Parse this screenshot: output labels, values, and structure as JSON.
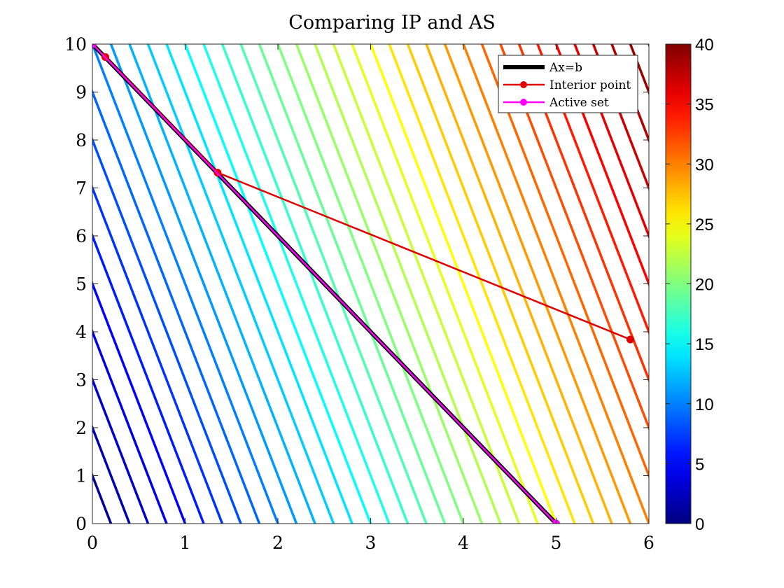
{
  "chart_data": {
    "type": "line",
    "title": "Comparing IP and AS",
    "xlabel": "",
    "ylabel": "",
    "xlim": [
      0,
      6
    ],
    "ylim": [
      0,
      10
    ],
    "x_ticks": [
      "0",
      "1",
      "2",
      "3",
      "4",
      "5",
      "6"
    ],
    "y_ticks": [
      "0",
      "1",
      "2",
      "3",
      "4",
      "5",
      "6",
      "7",
      "8",
      "9",
      "10"
    ],
    "grid": false,
    "legend_position": "top-right",
    "contour": {
      "function": "5x + y",
      "levels_start": 1,
      "levels_end": 40,
      "levels_step": 1,
      "colormap": "jet",
      "clim": [
        0,
        40
      ]
    },
    "colorbar": {
      "ticks": [
        "0",
        "5",
        "10",
        "15",
        "20",
        "25",
        "30",
        "35",
        "40"
      ],
      "range": [
        0,
        40
      ],
      "colormap": "jet"
    },
    "series": [
      {
        "name": "Ax=b",
        "color": "#000000",
        "x": [
          0,
          5
        ],
        "y": [
          10,
          0
        ]
      },
      {
        "name": "Interior point",
        "color": "#e00000",
        "x": [
          0.14,
          1.35,
          5.8
        ],
        "y": [
          9.73,
          7.32,
          3.84
        ]
      },
      {
        "name": "Active set",
        "color": "#ff00ff",
        "x": [
          0,
          5
        ],
        "y": [
          10,
          0
        ]
      }
    ]
  }
}
